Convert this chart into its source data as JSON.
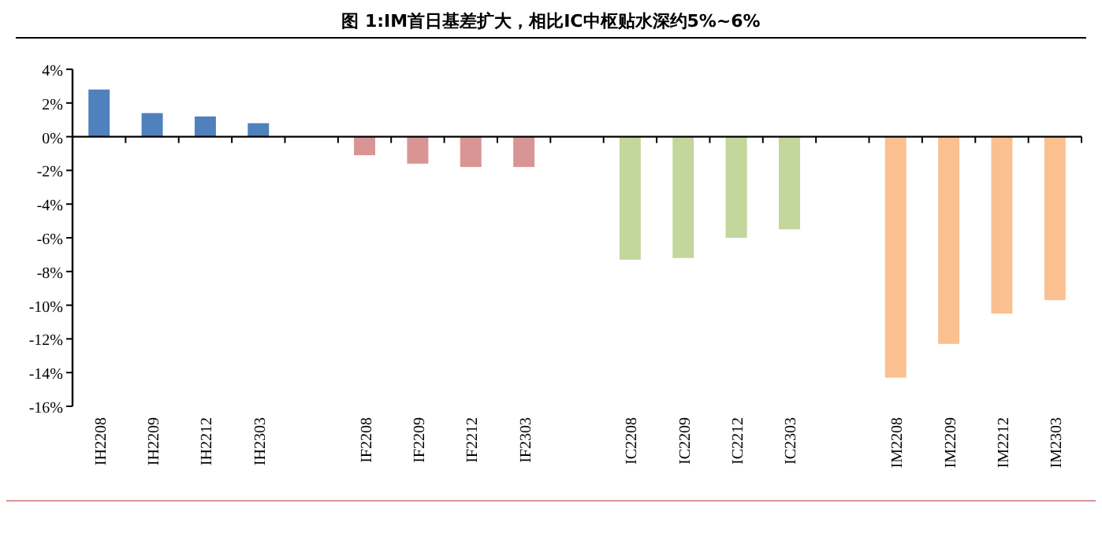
{
  "chart_data": {
    "type": "bar",
    "title": "图 1:IM首日基差扩大，相比IC中枢贴水深约5%~6%",
    "categories": [
      "IH2208",
      "IH2209",
      "IH2212",
      "IH2303",
      null,
      "IF2208",
      "IF2209",
      "IF2212",
      "IF2303",
      null,
      "IC2208",
      "IC2209",
      "IC2212",
      "IC2303",
      null,
      "IM2208",
      "IM2209",
      "IM2212",
      "IM2303"
    ],
    "values": [
      2.8,
      1.4,
      1.2,
      0.8,
      null,
      -1.1,
      -1.6,
      -1.8,
      -1.8,
      null,
      -7.3,
      -7.2,
      -6.0,
      -5.5,
      null,
      -14.3,
      -12.3,
      -10.5,
      -9.7
    ],
    "colors": [
      "#4f81bd",
      "#4f81bd",
      "#4f81bd",
      "#4f81bd",
      null,
      "#d99594",
      "#d99594",
      "#d99594",
      "#d99594",
      null,
      "#c3d69b",
      "#c3d69b",
      "#c3d69b",
      "#c3d69b",
      null,
      "#fac090",
      "#fac090",
      "#fac090",
      "#fac090"
    ],
    "ylim": [
      -16,
      4
    ],
    "yticks": [
      {
        "value": 4,
        "label": "4%"
      },
      {
        "value": 2,
        "label": "2%"
      },
      {
        "value": 0,
        "label": "0%"
      },
      {
        "value": -2,
        "label": "-2%"
      },
      {
        "value": -4,
        "label": "-4%"
      },
      {
        "value": -6,
        "label": "-6%"
      },
      {
        "value": -8,
        "label": "-8%"
      },
      {
        "value": -10,
        "label": "-10%"
      },
      {
        "value": -12,
        "label": "-12%"
      },
      {
        "value": -14,
        "label": "-14%"
      },
      {
        "value": -16,
        "label": "-16%"
      }
    ],
    "data_labels": false
  }
}
